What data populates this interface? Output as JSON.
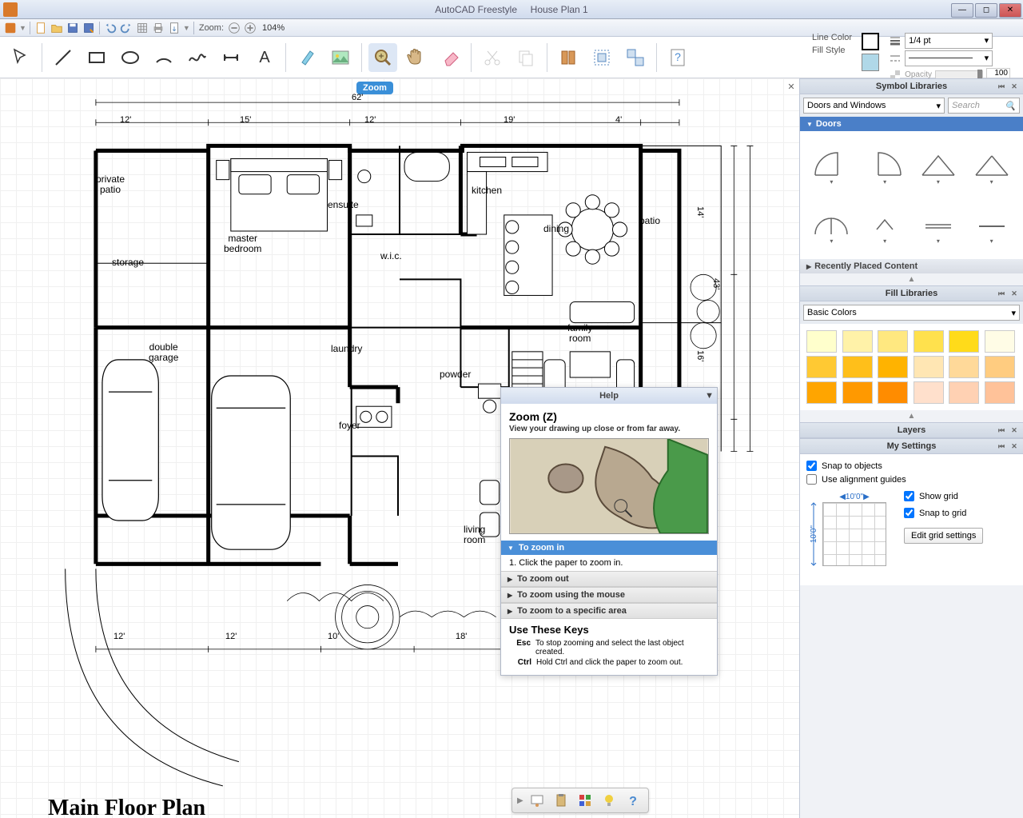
{
  "window": {
    "app_title": "AutoCAD Freestyle",
    "doc_title": "House Plan 1"
  },
  "qat": {
    "zoom_label": "Zoom:",
    "zoom_value": "104%"
  },
  "zoom_badge": "Zoom",
  "prop": {
    "line_color_label": "Line Color",
    "fill_style_label": "Fill Style",
    "line_weight": "1/4 pt",
    "opacity_label": "Opacity",
    "opacity_value": "100",
    "line_color": "#000000",
    "fill_color": "#b0d8e8"
  },
  "help": {
    "header": "Help",
    "title": "Zoom (Z)",
    "subtitle": "View your drawing up close or from far away.",
    "section_in": "To zoom in",
    "step1": "1. Click the paper to zoom in.",
    "section_out": "To zoom out",
    "section_mouse": "To zoom using the mouse",
    "section_area": "To zoom to a specific area",
    "keys_title": "Use These Keys",
    "key_esc": "Esc",
    "key_esc_desc": "To stop zooming and select the last object created.",
    "key_ctrl": "Ctrl",
    "key_ctrl_desc": "Hold Ctrl and click the paper to zoom out."
  },
  "sidebar": {
    "symbol_lib_title": "Symbol Libraries",
    "lib_category": "Doors and Windows",
    "search_placeholder": "Search",
    "doors_header": "Doors",
    "recent_header": "Recently Placed Content",
    "fill_lib_title": "Fill Libraries",
    "fill_category": "Basic Colors",
    "layers_title": "Layers",
    "settings_title": "My Settings",
    "snap_objects": "Snap to objects",
    "align_guides": "Use alignment guides",
    "grid_w": "10'0\"",
    "grid_h": "10'0\"",
    "show_grid": "Show grid",
    "snap_grid": "Snap to grid",
    "edit_grid": "Edit grid settings",
    "colors": [
      "#ffffcc",
      "#fff2a8",
      "#ffe880",
      "#ffe14d",
      "#ffdb1a",
      "#fffce6",
      "#ffc933",
      "#ffbf1a",
      "#ffb300",
      "#ffe6b3",
      "#ffd999",
      "#ffcc80",
      "#ffa500",
      "#ff9900",
      "#ff8c00",
      "#ffe0cc",
      "#ffd1b3",
      "#ffc299"
    ]
  },
  "floorplan": {
    "title": "Main Floor Plan",
    "dims_top": [
      "12'",
      "15'",
      "12'",
      "19'",
      "4'"
    ],
    "dim_total_top": "62'",
    "dim_right": [
      "14'",
      "16'"
    ],
    "dim_total_right": "43'",
    "dims_bottom": [
      "12'",
      "12'",
      "10'",
      "18'"
    ],
    "rooms": {
      "private_patio": "private\npatio",
      "storage": "storage",
      "double_garage": "double\ngarage",
      "master_bedroom": "master\nbedroom",
      "ensuite": "ensuite",
      "wic": "w.i.c.",
      "kitchen": "kitchen",
      "dining": "dining",
      "patio": "patio",
      "family_room": "family\nroom",
      "laundry": "laundry",
      "powder": "powder",
      "foyer": "foyer",
      "living_room": "living\nroom"
    }
  }
}
